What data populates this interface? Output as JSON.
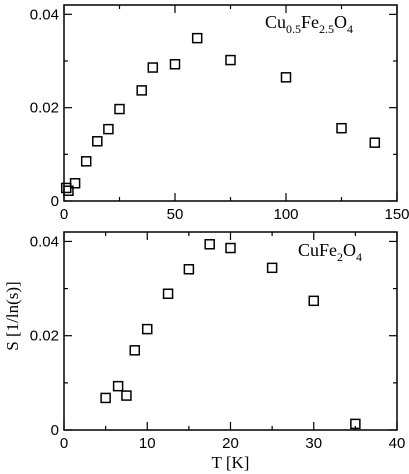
{
  "ylabel": "S [1/ln(s)]",
  "chart_data": [
    {
      "type": "scatter",
      "annotation": "Cu0.5Fe2.5O4",
      "annotation_parts": [
        {
          "text": "Cu",
          "sub": false
        },
        {
          "text": "0.5",
          "sub": true
        },
        {
          "text": "Fe",
          "sub": false
        },
        {
          "text": "2.5",
          "sub": true
        },
        {
          "text": "O",
          "sub": false
        },
        {
          "text": "4",
          "sub": true
        }
      ],
      "xlim": [
        0,
        150
      ],
      "ylim": [
        0,
        0.042
      ],
      "xticks": [
        0,
        50,
        100,
        150
      ],
      "xtick_labels": [
        "0",
        "50",
        "100",
        "150"
      ],
      "yticks": [
        0,
        0.02,
        0.04
      ],
      "ytick_labels": [
        "0",
        "0.02",
        "0.04"
      ],
      "marker": "open-square",
      "x": [
        1,
        2,
        5,
        10,
        15,
        20,
        25,
        35,
        40,
        50,
        60,
        75,
        100,
        125,
        140
      ],
      "y": [
        0.0028,
        0.0022,
        0.0038,
        0.0085,
        0.0128,
        0.0154,
        0.0197,
        0.0237,
        0.0286,
        0.0293,
        0.0349,
        0.0302,
        0.0265,
        0.0156,
        0.0125
      ]
    },
    {
      "type": "scatter",
      "annotation": "CuFe2O4",
      "annotation_parts": [
        {
          "text": "CuFe",
          "sub": false
        },
        {
          "text": "2",
          "sub": true
        },
        {
          "text": "O",
          "sub": false
        },
        {
          "text": "4",
          "sub": true
        }
      ],
      "xlabel": "T [K]",
      "xlim": [
        0,
        40
      ],
      "ylim": [
        0,
        0.042
      ],
      "xticks": [
        0,
        10,
        20,
        30,
        40
      ],
      "xtick_labels": [
        "0",
        "10",
        "20",
        "30",
        "40"
      ],
      "yticks": [
        0,
        0.02,
        0.04
      ],
      "ytick_labels": [
        "0",
        "0.02",
        "0.04"
      ],
      "marker": "open-square",
      "x": [
        5,
        6.5,
        7.5,
        8.5,
        10,
        12.5,
        15,
        17.5,
        20,
        25,
        30,
        35
      ],
      "y": [
        0.0068,
        0.0093,
        0.0073,
        0.0169,
        0.0214,
        0.0289,
        0.0341,
        0.0394,
        0.0386,
        0.0344,
        0.0274,
        0.0013
      ]
    }
  ]
}
